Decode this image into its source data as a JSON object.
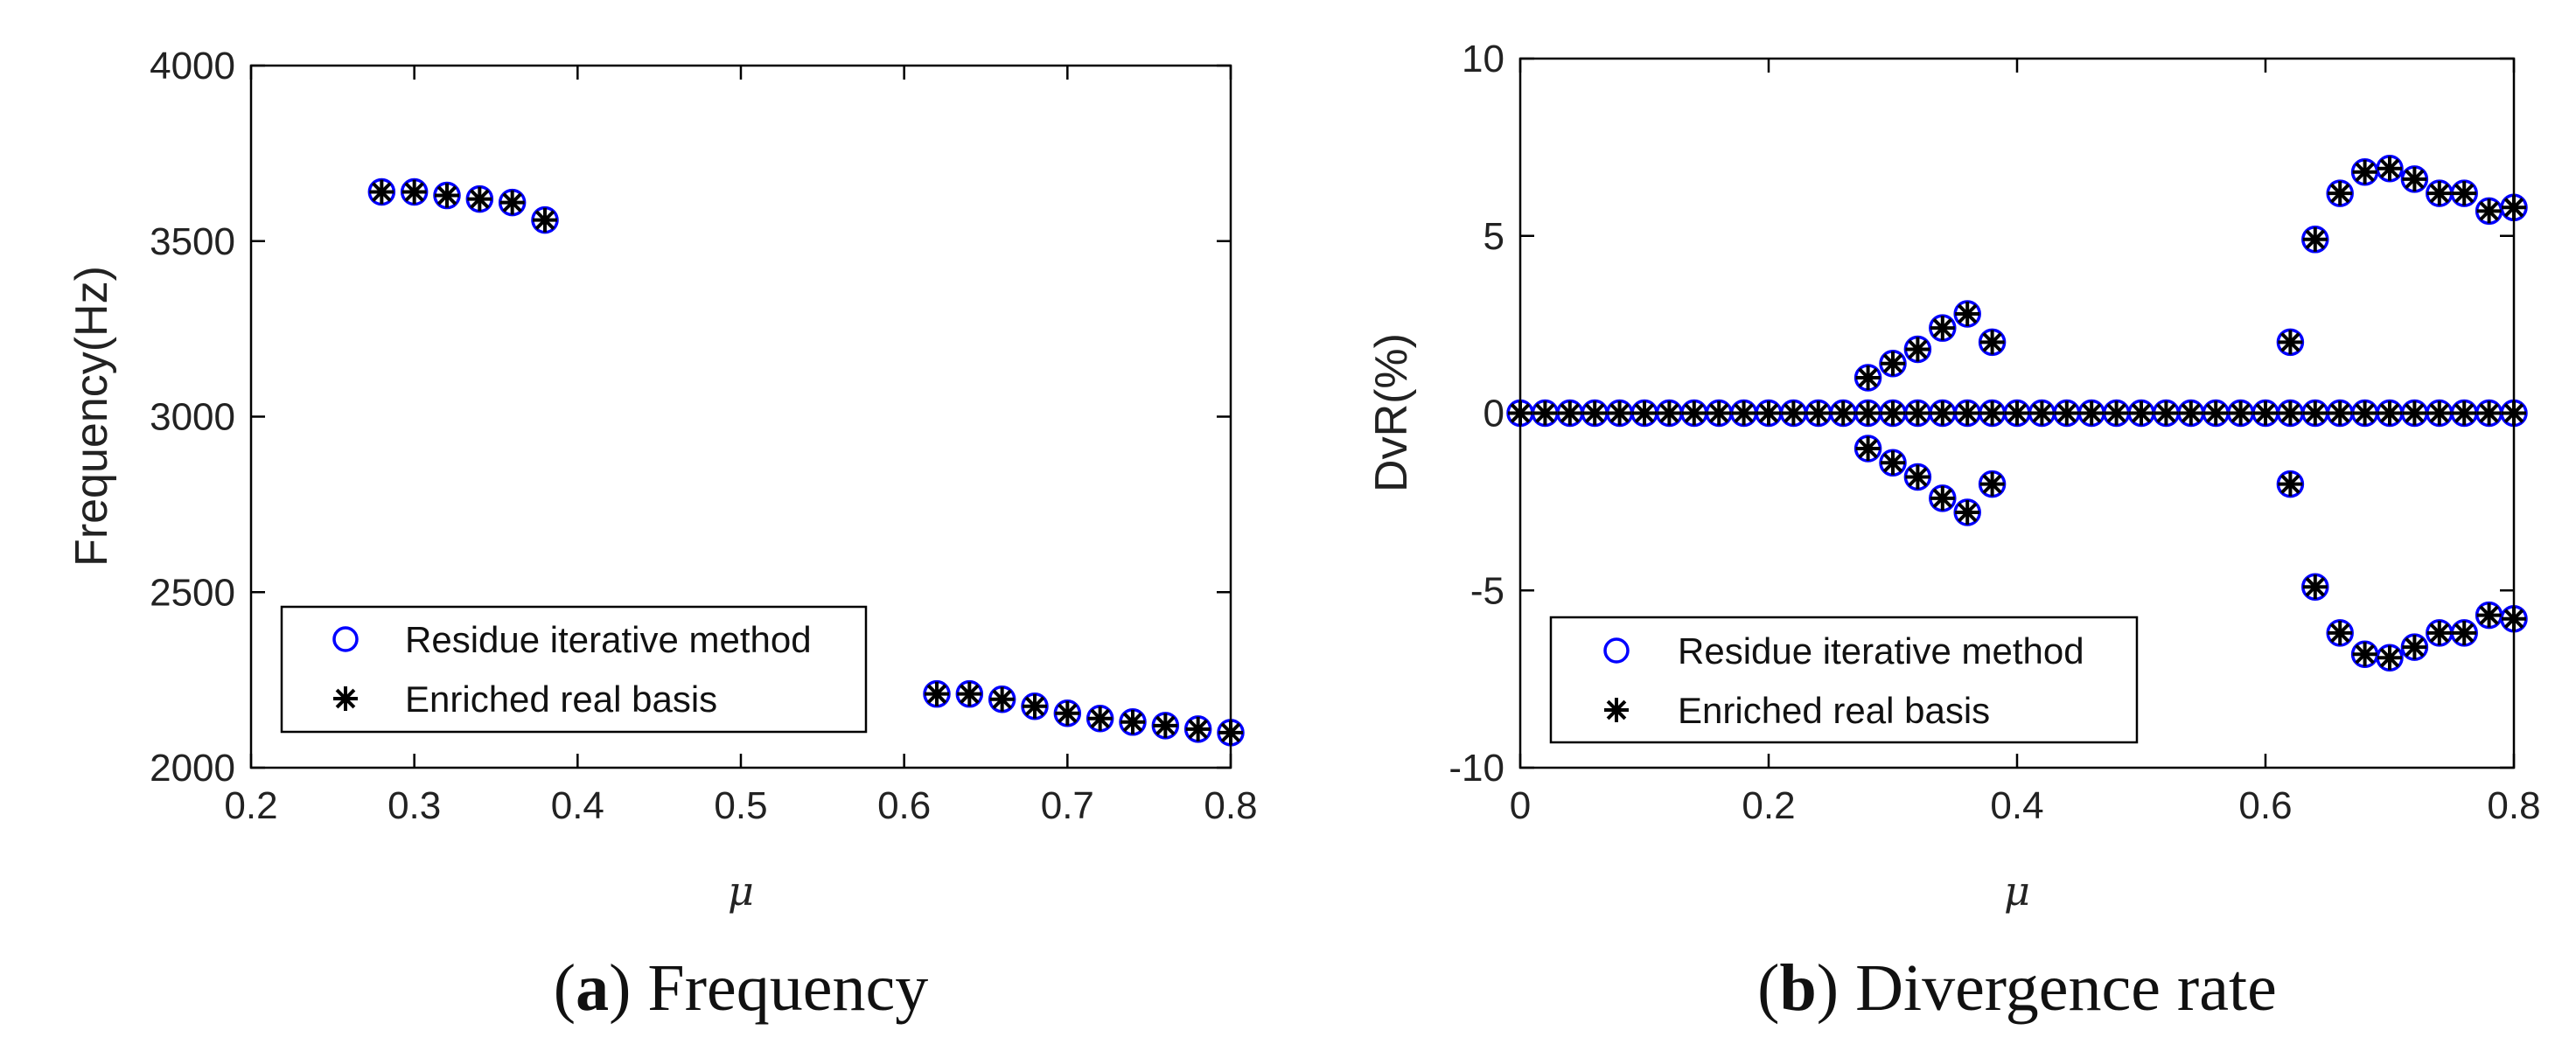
{
  "chart_data": [
    {
      "type": "scatter",
      "caption_label": "a",
      "caption_text": "Frequency",
      "xlabel": "μ",
      "ylabel": "Frequency(Hz)",
      "xlim": [
        0.2,
        0.8
      ],
      "ylim": [
        2000,
        4000
      ],
      "xticks": [
        "0.2",
        "0.3",
        "0.4",
        "0.5",
        "0.6",
        "0.7",
        "0.8"
      ],
      "yticks": [
        "2000",
        "2500",
        "3000",
        "3500",
        "4000"
      ],
      "legend_position": "bottom-left",
      "series": [
        {
          "name": "Residue iterative method",
          "marker": "circle",
          "color": "#0000ff",
          "x": [
            0.28,
            0.3,
            0.32,
            0.34,
            0.36,
            0.38,
            0.62,
            0.64,
            0.66,
            0.68,
            0.7,
            0.72,
            0.74,
            0.76,
            0.78,
            0.8
          ],
          "y": [
            3640,
            3640,
            3630,
            3620,
            3610,
            3560,
            2210,
            2210,
            2195,
            2175,
            2155,
            2140,
            2130,
            2120,
            2110,
            2100
          ]
        },
        {
          "name": "Enriched real basis",
          "marker": "asterisk",
          "color": "#000000",
          "x": [
            0.28,
            0.3,
            0.32,
            0.34,
            0.36,
            0.38,
            0.62,
            0.64,
            0.66,
            0.68,
            0.7,
            0.72,
            0.74,
            0.76,
            0.78,
            0.8
          ],
          "y": [
            3640,
            3640,
            3630,
            3620,
            3610,
            3560,
            2210,
            2210,
            2195,
            2175,
            2155,
            2140,
            2130,
            2120,
            2110,
            2100
          ]
        }
      ]
    },
    {
      "type": "scatter",
      "caption_label": "b",
      "caption_text": "Divergence rate",
      "xlabel": "μ",
      "ylabel": "DvR(%)",
      "xlim": [
        0,
        0.8
      ],
      "ylim": [
        -10,
        10
      ],
      "xticks": [
        "0",
        "0.2",
        "0.4",
        "0.6",
        "0.8"
      ],
      "yticks": [
        "-10",
        "-5",
        "0",
        "5",
        "10"
      ],
      "legend_position": "bottom-left",
      "series": [
        {
          "name": "Residue iterative method",
          "marker": "circle",
          "color": "#0000ff",
          "x": [
            0,
            0.02,
            0.04,
            0.06,
            0.08,
            0.1,
            0.12,
            0.14,
            0.16,
            0.18,
            0.2,
            0.22,
            0.24,
            0.26,
            0.28,
            0.3,
            0.32,
            0.34,
            0.36,
            0.38,
            0.4,
            0.42,
            0.44,
            0.46,
            0.48,
            0.5,
            0.52,
            0.54,
            0.56,
            0.58,
            0.6,
            0.62,
            0.64,
            0.66,
            0.68,
            0.7,
            0.72,
            0.74,
            0.76,
            0.78,
            0.8,
            0.28,
            0.3,
            0.32,
            0.34,
            0.36,
            0.38,
            0.28,
            0.3,
            0.32,
            0.34,
            0.36,
            0.38,
            0.62,
            0.64,
            0.66,
            0.68,
            0.7,
            0.72,
            0.74,
            0.76,
            0.78,
            0.8,
            0.62,
            0.64,
            0.66,
            0.68,
            0.7,
            0.72,
            0.74,
            0.76,
            0.78,
            0.8
          ],
          "y": [
            0,
            0,
            0,
            0,
            0,
            0,
            0,
            0,
            0,
            0,
            0,
            0,
            0,
            0,
            0,
            0,
            0,
            0,
            0,
            0,
            0,
            0,
            0,
            0,
            0,
            0,
            0,
            0,
            0,
            0,
            0,
            0,
            0,
            0,
            0,
            0,
            0,
            0,
            0,
            0,
            0,
            1.0,
            1.4,
            1.8,
            2.4,
            2.8,
            2.0,
            -1.0,
            -1.4,
            -1.8,
            -2.4,
            -2.8,
            -2.0,
            2.0,
            4.9,
            6.2,
            6.8,
            6.9,
            6.6,
            6.2,
            6.2,
            5.7,
            5.8,
            -2.0,
            -4.9,
            -6.2,
            -6.8,
            -6.9,
            -6.6,
            -6.2,
            -6.2,
            -5.7,
            -5.8
          ]
        },
        {
          "name": "Enriched real basis",
          "marker": "asterisk",
          "color": "#000000",
          "x": [
            0,
            0.02,
            0.04,
            0.06,
            0.08,
            0.1,
            0.12,
            0.14,
            0.16,
            0.18,
            0.2,
            0.22,
            0.24,
            0.26,
            0.28,
            0.3,
            0.32,
            0.34,
            0.36,
            0.38,
            0.4,
            0.42,
            0.44,
            0.46,
            0.48,
            0.5,
            0.52,
            0.54,
            0.56,
            0.58,
            0.6,
            0.62,
            0.64,
            0.66,
            0.68,
            0.7,
            0.72,
            0.74,
            0.76,
            0.78,
            0.8,
            0.28,
            0.3,
            0.32,
            0.34,
            0.36,
            0.38,
            0.28,
            0.3,
            0.32,
            0.34,
            0.36,
            0.38,
            0.62,
            0.64,
            0.66,
            0.68,
            0.7,
            0.72,
            0.74,
            0.76,
            0.78,
            0.8,
            0.62,
            0.64,
            0.66,
            0.68,
            0.7,
            0.72,
            0.74,
            0.76,
            0.78,
            0.8
          ],
          "y": [
            0,
            0,
            0,
            0,
            0,
            0,
            0,
            0,
            0,
            0,
            0,
            0,
            0,
            0,
            0,
            0,
            0,
            0,
            0,
            0,
            0,
            0,
            0,
            0,
            0,
            0,
            0,
            0,
            0,
            0,
            0,
            0,
            0,
            0,
            0,
            0,
            0,
            0,
            0,
            0,
            0,
            1.0,
            1.4,
            1.8,
            2.4,
            2.8,
            2.0,
            -1.0,
            -1.4,
            -1.8,
            -2.4,
            -2.8,
            -2.0,
            2.0,
            4.9,
            6.2,
            6.8,
            6.9,
            6.6,
            6.2,
            6.2,
            5.7,
            5.8,
            -2.0,
            -4.9,
            -6.2,
            -6.8,
            -6.9,
            -6.6,
            -6.2,
            -6.2,
            -5.7,
            -5.8
          ]
        }
      ]
    }
  ]
}
